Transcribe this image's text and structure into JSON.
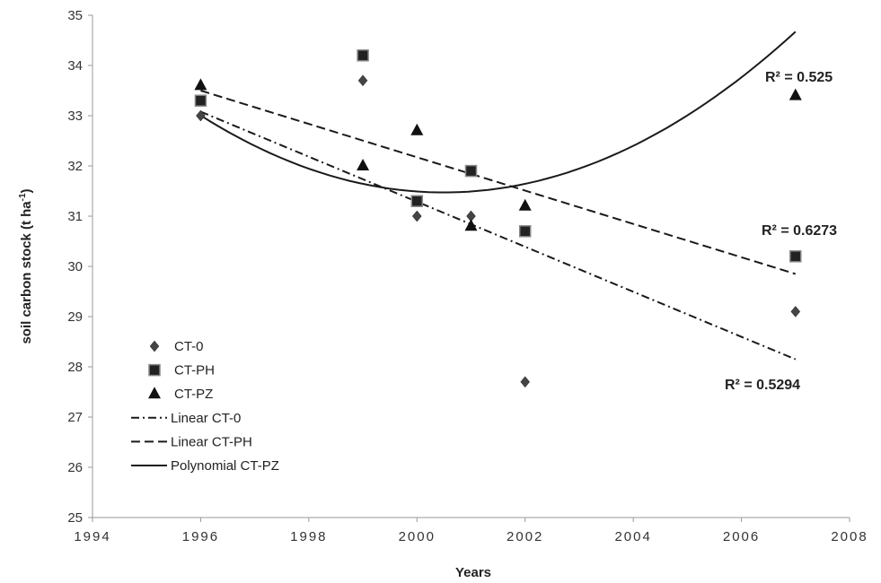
{
  "chart_data": {
    "type": "scatter",
    "xlabel": "Years",
    "ylabel": "soil carbon stock (t ha",
    "ylabel_sup": "-1",
    "ylabel_end": ")",
    "xlim": [
      1994,
      2008
    ],
    "ylim": [
      25,
      35
    ],
    "x_ticks": [
      "1994",
      "1996",
      "1998",
      "2000",
      "2002",
      "2004",
      "2006",
      "2008"
    ],
    "y_ticks": [
      "25",
      "26",
      "27",
      "28",
      "29",
      "30",
      "31",
      "32",
      "33",
      "34",
      "35"
    ],
    "grid": false,
    "legend_position": "lower-left",
    "series": [
      {
        "name": "CT-0",
        "marker": "diamond",
        "color": "#444444",
        "points": [
          [
            1996,
            33.0
          ],
          [
            1999,
            33.7
          ],
          [
            2000,
            31.0
          ],
          [
            2001,
            31.0
          ],
          [
            2002,
            27.7
          ],
          [
            2007,
            29.1
          ]
        ]
      },
      {
        "name": "CT-PH",
        "marker": "square",
        "color": "#222222",
        "points": [
          [
            1996,
            33.3
          ],
          [
            1999,
            34.2
          ],
          [
            2000,
            31.3
          ],
          [
            2001,
            31.9
          ],
          [
            2002,
            30.7
          ],
          [
            2007,
            30.2
          ]
        ]
      },
      {
        "name": "CT-PZ",
        "marker": "triangle",
        "color": "#111111",
        "points": [
          [
            1996,
            33.6
          ],
          [
            1999,
            32.0
          ],
          [
            2000,
            32.7
          ],
          [
            2001,
            30.8
          ],
          [
            2002,
            31.2
          ],
          [
            2007,
            33.4
          ]
        ]
      }
    ],
    "trendlines": [
      {
        "name": "Linear CT-0",
        "kind": "linear",
        "style": "dash-dot",
        "x_range": [
          1996,
          2007
        ],
        "y_range": [
          33.08,
          28.15
        ],
        "r2_label": "R² = 0.5294"
      },
      {
        "name": "Linear CT-PH",
        "kind": "linear",
        "style": "dashed",
        "x_range": [
          1996,
          2007
        ],
        "y_range": [
          33.5,
          29.85
        ],
        "r2_label": "R² = 0.6273"
      },
      {
        "name": "Polynomial CT-PZ",
        "kind": "polynomial",
        "style": "solid",
        "x_range": [
          1996,
          2007
        ],
        "coefficients": [
          0.0757,
          -0.8326,
          33.762
        ],
        "r2_label": "R² = 0.525"
      }
    ]
  }
}
